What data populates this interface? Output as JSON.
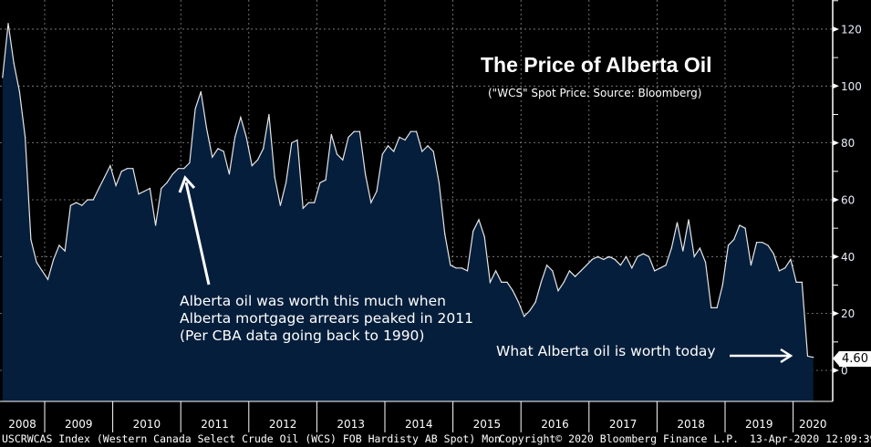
{
  "title": "The Price of Alberta Oil",
  "subtitle": "(\"WCS\" Spot Price. Source: Bloomberg)",
  "annotation_2011": [
    "Alberta oil was worth this much when",
    "Alberta mortgage arrears peaked in 2011",
    "(Per CBA data going back to 1990)"
  ],
  "annotation_today": "What Alberta oil is worth today",
  "last_value_label": "4.60",
  "footer": {
    "ticker": "USCRWCAS Index (Western Canada Select Crude Oil (WCS) FOB Hardisty AB Spot)  Mon",
    "copyright": "Copyright© 2020 Bloomberg Finance L.P.",
    "timestamp": "13-Apr-2020 12:09:39"
  },
  "colors": {
    "background": "#000000",
    "area_fill": "#051e3b",
    "line": "#e6e6e6",
    "grid": "#8a8a8a"
  },
  "chart_data": {
    "type": "area",
    "title": "The Price of Alberta Oil",
    "xlabel": "",
    "ylabel": "",
    "ylim": [
      -10,
      130
    ],
    "y_ticks": [
      "0",
      "20",
      "40",
      "60",
      "80",
      "100",
      "120"
    ],
    "x_ticks": [
      "2008",
      "2009",
      "2010",
      "2011",
      "2012",
      "2013",
      "2014",
      "2015",
      "2016",
      "2017",
      "2018",
      "2019",
      "2020"
    ],
    "grid": true,
    "y_axis_side": "right",
    "last_value": 4.6,
    "dates": [
      "2008-05",
      "2008-06",
      "2008-07",
      "2008-08",
      "2008-09",
      "2008-10",
      "2008-11",
      "2008-12",
      "2009-01",
      "2009-02",
      "2009-03",
      "2009-04",
      "2009-05",
      "2009-06",
      "2009-07",
      "2009-08",
      "2009-09",
      "2009-10",
      "2009-11",
      "2009-12",
      "2010-01",
      "2010-02",
      "2010-03",
      "2010-04",
      "2010-05",
      "2010-06",
      "2010-07",
      "2010-08",
      "2010-09",
      "2010-10",
      "2010-11",
      "2010-12",
      "2011-01",
      "2011-02",
      "2011-03",
      "2011-04",
      "2011-05",
      "2011-06",
      "2011-07",
      "2011-08",
      "2011-09",
      "2011-10",
      "2011-11",
      "2011-12",
      "2012-01",
      "2012-02",
      "2012-03",
      "2012-04",
      "2012-05",
      "2012-06",
      "2012-07",
      "2012-08",
      "2012-09",
      "2012-10",
      "2012-11",
      "2012-12",
      "2013-01",
      "2013-02",
      "2013-03",
      "2013-04",
      "2013-05",
      "2013-06",
      "2013-07",
      "2013-08",
      "2013-09",
      "2013-10",
      "2013-11",
      "2013-12",
      "2014-01",
      "2014-02",
      "2014-03",
      "2014-04",
      "2014-05",
      "2014-06",
      "2014-07",
      "2014-08",
      "2014-09",
      "2014-10",
      "2014-11",
      "2014-12",
      "2015-01",
      "2015-02",
      "2015-03",
      "2015-04",
      "2015-05",
      "2015-06",
      "2015-07",
      "2015-08",
      "2015-09",
      "2015-10",
      "2015-11",
      "2015-12",
      "2016-01",
      "2016-02",
      "2016-03",
      "2016-04",
      "2016-05",
      "2016-06",
      "2016-07",
      "2016-08",
      "2016-09",
      "2016-10",
      "2016-11",
      "2016-12",
      "2017-01",
      "2017-02",
      "2017-03",
      "2017-04",
      "2017-05",
      "2017-06",
      "2017-07",
      "2017-08",
      "2017-09",
      "2017-10",
      "2017-11",
      "2017-12",
      "2018-01",
      "2018-02",
      "2018-03",
      "2018-04",
      "2018-05",
      "2018-06",
      "2018-07",
      "2018-08",
      "2018-09",
      "2018-10",
      "2018-11",
      "2018-12",
      "2019-01",
      "2019-02",
      "2019-03",
      "2019-04",
      "2019-05",
      "2019-06",
      "2019-07",
      "2019-08",
      "2019-09",
      "2019-10",
      "2019-11",
      "2019-12",
      "2020-01",
      "2020-02",
      "2020-03",
      "2020-04"
    ],
    "values": [
      103,
      122,
      108,
      98,
      82,
      46,
      38,
      35,
      32,
      39,
      44,
      42,
      58,
      59,
      58,
      60,
      60,
      64,
      68,
      72,
      65,
      70,
      71,
      71,
      62,
      63,
      64,
      51,
      64,
      66,
      69,
      71,
      71,
      73,
      92,
      98,
      85,
      75,
      78,
      77,
      69,
      82,
      89,
      82,
      72,
      74,
      78,
      90,
      68,
      58,
      66,
      80,
      81,
      57,
      59,
      59,
      66,
      67,
      83,
      76,
      74,
      82,
      84,
      84,
      69,
      59,
      63,
      76,
      79,
      77,
      82,
      81,
      84,
      84,
      77,
      79,
      77,
      66,
      48,
      37,
      36,
      36,
      35,
      49,
      53,
      47,
      31,
      35,
      31,
      31,
      28,
      24,
      19,
      21,
      24,
      31,
      37,
      35,
      28,
      31,
      35,
      33,
      35,
      37,
      39,
      40,
      39,
      40,
      39,
      37,
      40,
      36,
      40,
      41,
      40,
      35,
      36,
      37,
      43,
      52,
      42,
      53,
      40,
      43,
      38,
      22,
      22,
      30,
      44,
      46,
      51,
      50,
      37,
      45,
      45,
      44,
      41,
      35,
      36,
      39,
      31,
      31,
      5,
      4.6
    ]
  }
}
